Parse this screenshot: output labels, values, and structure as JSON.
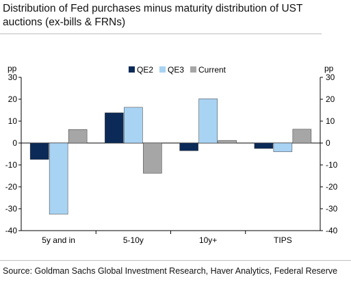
{
  "title": "Distribution of Fed purchases minus maturity distribution of UST auctions (ex-bills & FRNs)",
  "source": "Source: Goldman Sachs Global Investment Research, Haver Analytics, Federal Reserve",
  "chart_data": {
    "type": "bar",
    "categories": [
      "5y and in",
      "5-10y",
      "10y+",
      "TIPS"
    ],
    "series": [
      {
        "name": "QE2",
        "values": [
          -7.5,
          13.8,
          -3.5,
          -2.5
        ],
        "color": "#0b2a57"
      },
      {
        "name": "QE3",
        "values": [
          -32.5,
          16.3,
          20.2,
          -4.0
        ],
        "color": "#a9d3f3"
      },
      {
        "name": "Current",
        "values": [
          6.2,
          -13.8,
          1.2,
          6.3
        ],
        "color": "#a6a6a6"
      }
    ],
    "ylabel_left": "pp",
    "ylabel_right": "pp",
    "ylim": [
      -40,
      30
    ],
    "yticks": [
      30,
      20,
      10,
      0,
      -10,
      -20,
      -30,
      -40
    ],
    "legend_position": "top-center",
    "grid": false
  }
}
